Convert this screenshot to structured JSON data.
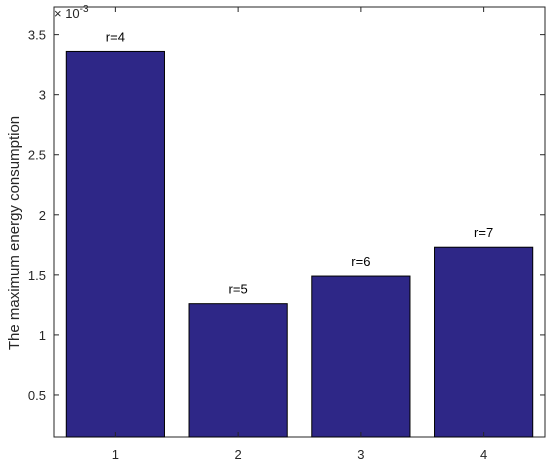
{
  "chart_data": {
    "type": "bar",
    "categories": [
      "1",
      "2",
      "3",
      "4"
    ],
    "values": [
      0.00336,
      0.00126,
      0.00149,
      0.00173
    ],
    "data_labels": [
      "r=4",
      "r=5",
      "r=6",
      "r=7"
    ],
    "title": "",
    "xlabel": "",
    "ylabel": "The maximum energy consumption",
    "ylim": [
      0.00015,
      0.00373
    ],
    "yticks": [
      0.0005,
      0.001,
      0.0015,
      0.002,
      0.0025,
      0.003,
      0.0035
    ],
    "ytick_labels": [
      "0.5",
      "1",
      "1.5",
      "2",
      "2.5",
      "3",
      "3.5"
    ],
    "y_multiplier_base": "× 10",
    "y_multiplier_exponent": "-3",
    "grid": false,
    "legend": "none",
    "bar_color": "#2e2787",
    "bar_edge_color": "#000000"
  }
}
